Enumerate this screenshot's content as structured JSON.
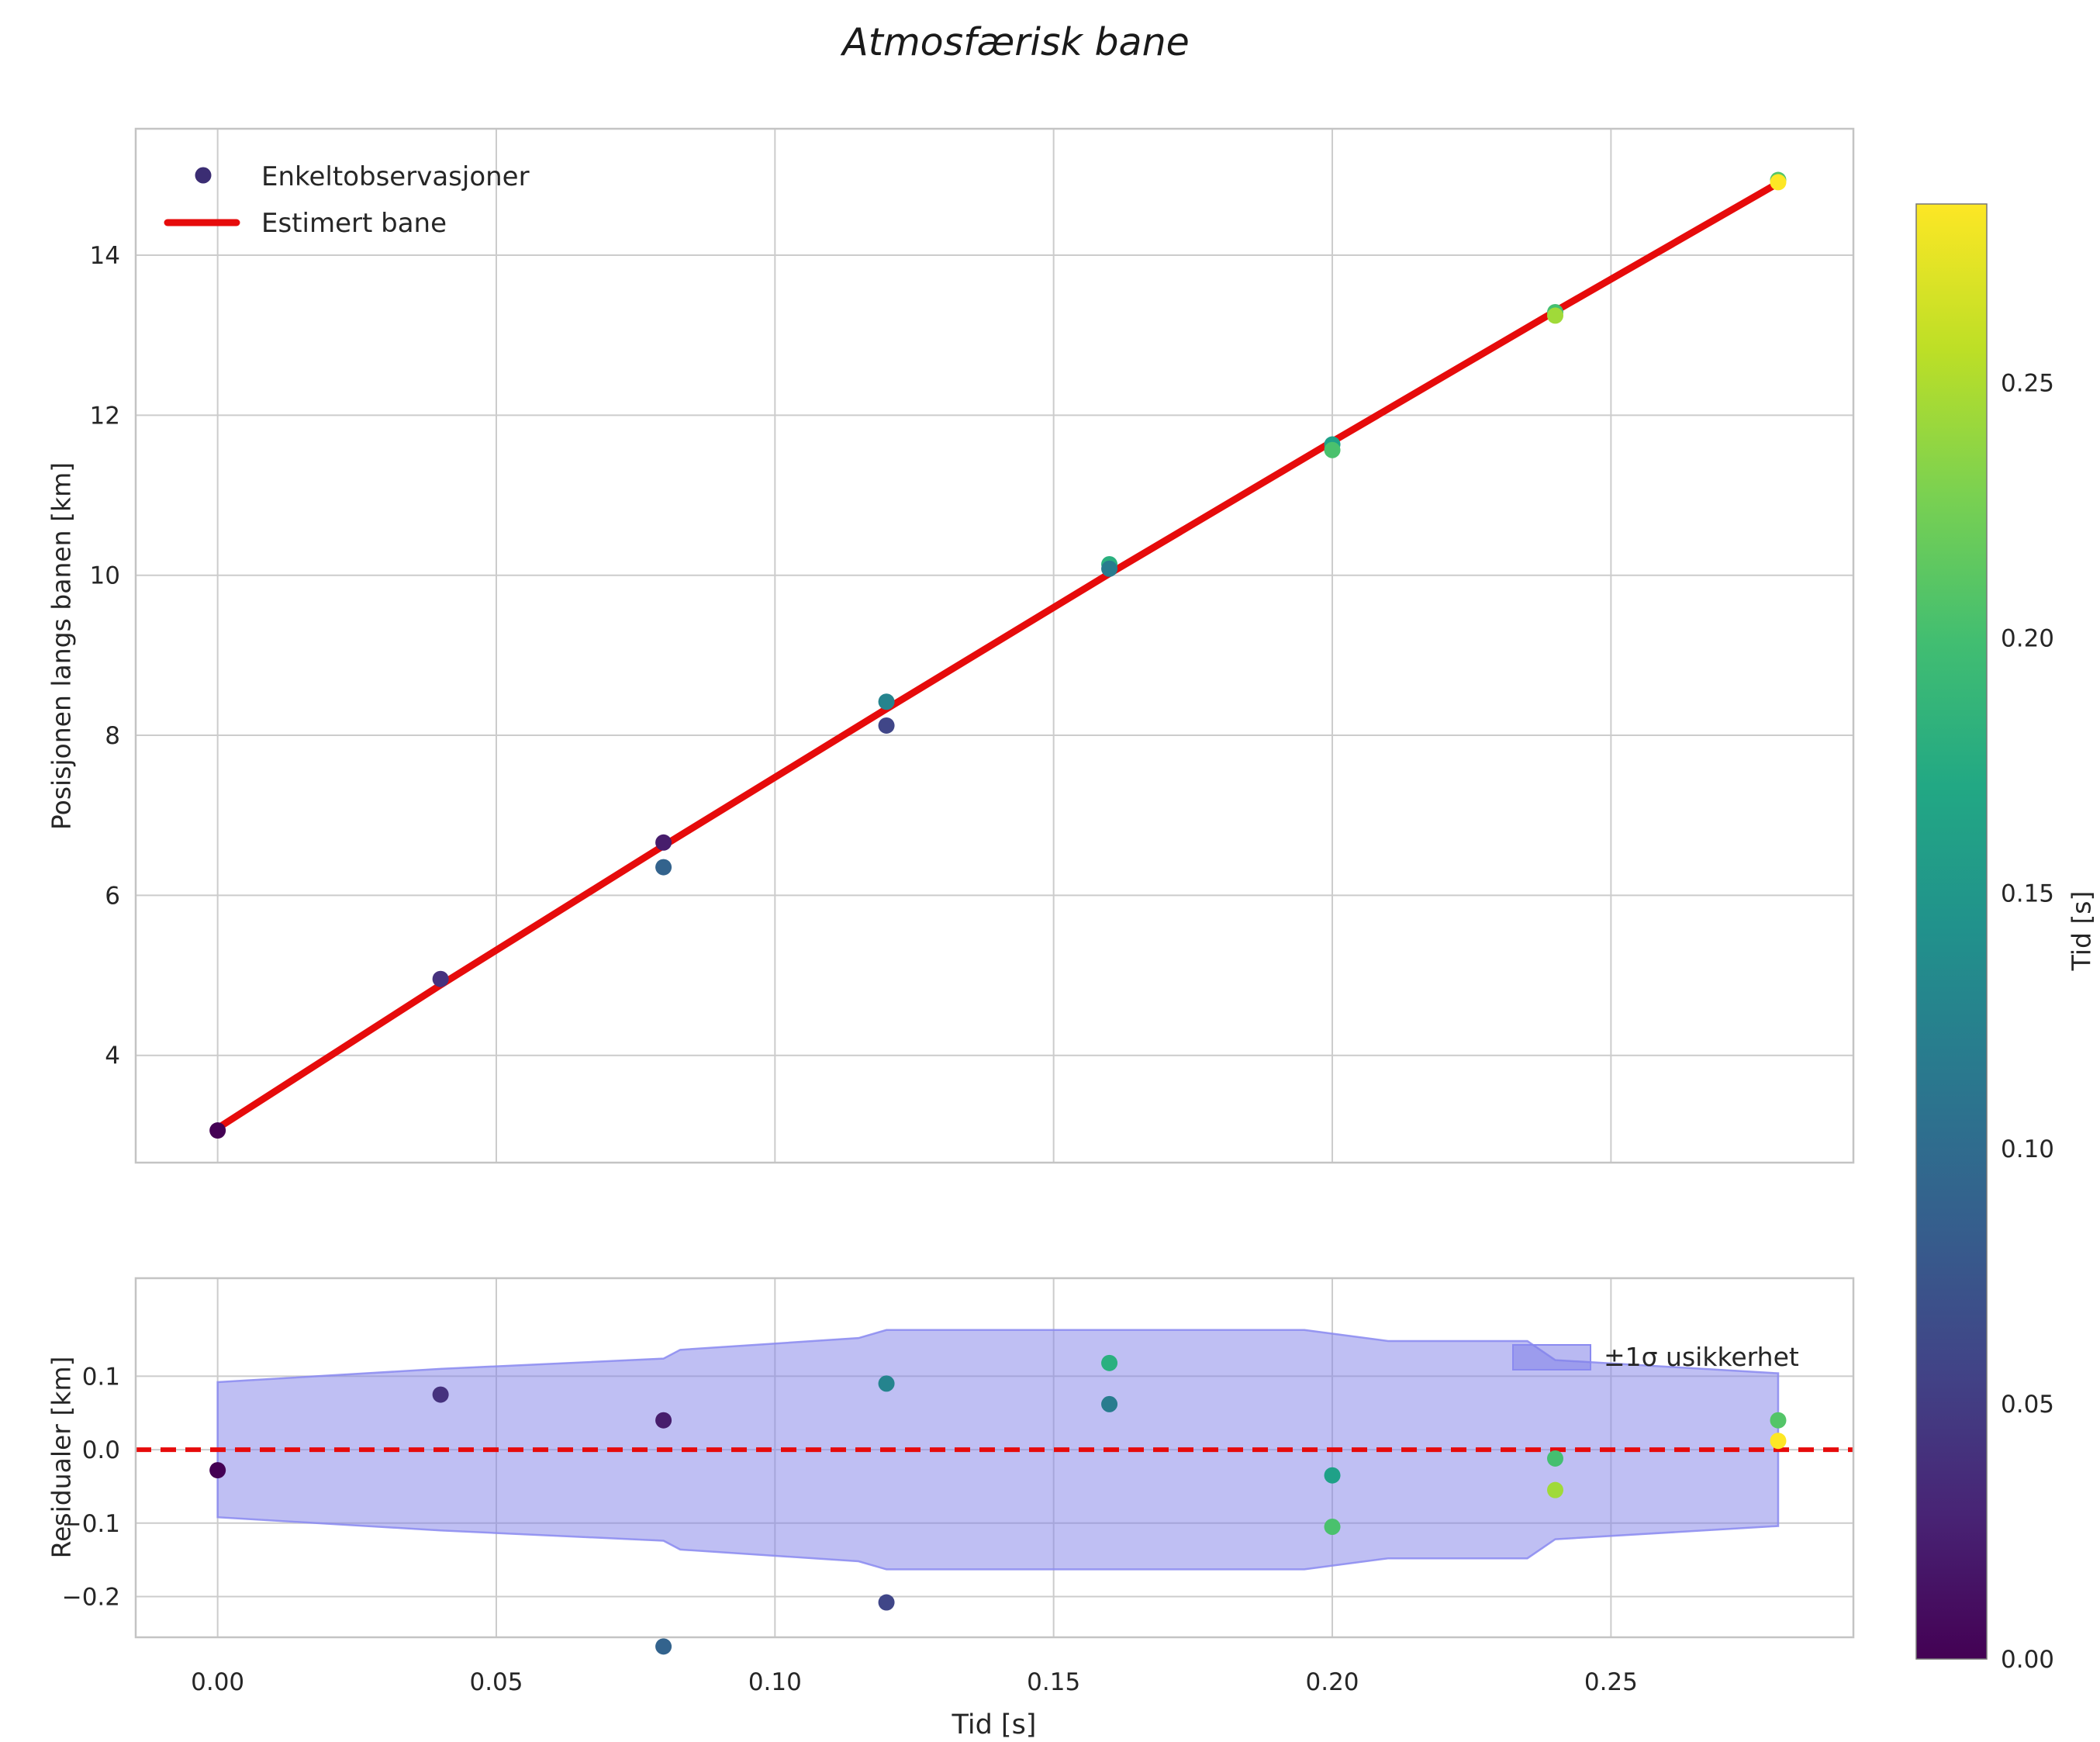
{
  "chart_data": {
    "type": "scatter",
    "suptitle": "Atmosfærisk bane",
    "palette": "viridis",
    "colors": {
      "fit_line": "#e60b0b",
      "zero_line": "#e60b0b",
      "band_fill": "#7f7fe8",
      "band_edge": "#8a8af0",
      "grid": "#cccccc",
      "frame": "#c4c4c4",
      "text": "#262626",
      "legend_marker": "#3b2d73"
    },
    "main": {
      "ylabel": "Posisjonen langs banen [km]",
      "xlim": [
        -0.0147,
        0.2935
      ],
      "ylim": [
        2.66,
        15.58
      ],
      "xticks": [
        0,
        0.05,
        0.1,
        0.15,
        0.2,
        0.25
      ],
      "yticks": [
        4,
        6,
        8,
        10,
        12,
        14
      ],
      "ytick_labels": [
        "4",
        "6",
        "8",
        "10",
        "12",
        "14"
      ],
      "legend": [
        {
          "type": "marker",
          "label": "Enkeltobservasjoner"
        },
        {
          "type": "line",
          "label": "Estimert bane"
        }
      ]
    },
    "fit_line": {
      "label": "Estimert bane",
      "x": [
        0.0,
        0.04,
        0.08,
        0.12,
        0.16,
        0.2,
        0.24,
        0.28
      ],
      "y": [
        3.09,
        4.88,
        6.62,
        8.33,
        10.02,
        11.67,
        13.3,
        14.9
      ]
    },
    "observations": {
      "label": "Enkeltobservasjoner",
      "points": [
        {
          "t": 0.0,
          "res": -0.028,
          "color": "#440154"
        },
        {
          "t": 0.04,
          "res": 0.075,
          "color": "#46327e"
        },
        {
          "t": 0.08,
          "res": 0.04,
          "color": "#471d6c"
        },
        {
          "t": 0.08,
          "res": -0.268,
          "color": "#33638d"
        },
        {
          "t": 0.12,
          "res": 0.09,
          "color": "#25848e"
        },
        {
          "t": 0.12,
          "res": -0.208,
          "color": "#404688"
        },
        {
          "t": 0.16,
          "res": 0.118,
          "color": "#2ab07f"
        },
        {
          "t": 0.16,
          "res": 0.062,
          "color": "#287c8e"
        },
        {
          "t": 0.2,
          "res": -0.035,
          "color": "#1fa188"
        },
        {
          "t": 0.2,
          "res": -0.105,
          "color": "#4ac16d"
        },
        {
          "t": 0.24,
          "res": -0.012,
          "color": "#44bf70"
        },
        {
          "t": 0.24,
          "res": -0.055,
          "color": "#a0da39"
        },
        {
          "t": 0.28,
          "res": 0.04,
          "color": "#54c568"
        },
        {
          "t": 0.28,
          "res": 0.012,
          "color": "#fde725"
        }
      ]
    },
    "residual": {
      "ylabel": "Residualer [km]",
      "xlabel": "Tid [s]",
      "ylim": [
        -0.2555,
        0.2335
      ],
      "xticks": [
        0,
        0.05,
        0.1,
        0.15,
        0.2,
        0.25
      ],
      "xtick_labels": [
        "0.00",
        "0.05",
        "0.10",
        "0.15",
        "0.20",
        "0.25"
      ],
      "yticks": [
        -0.2,
        -0.1,
        0,
        0.1
      ],
      "ytick_labels": [
        "−0.2",
        "−0.1",
        "0.0",
        "0.1"
      ],
      "zero_line": 0,
      "band": {
        "label": "±1σ usikkerhet",
        "t": [
          0.0,
          0.04,
          0.08,
          0.083,
          0.115,
          0.12,
          0.195,
          0.21,
          0.235,
          0.24,
          0.28
        ],
        "sigma": [
          0.092,
          0.11,
          0.124,
          0.136,
          0.152,
          0.163,
          0.163,
          0.148,
          0.148,
          0.122,
          0.104
        ]
      }
    },
    "colorbar": {
      "label": "Tid [s]",
      "range": [
        0,
        0.285
      ],
      "ticks": [
        0,
        0.05,
        0.1,
        0.15,
        0.2,
        0.25
      ],
      "tick_labels": [
        "0.00",
        "0.05",
        "0.10",
        "0.15",
        "0.20",
        "0.25"
      ],
      "stops": [
        [
          "0%",
          "#440154"
        ],
        [
          "10%",
          "#482475"
        ],
        [
          "20%",
          "#414487"
        ],
        [
          "30%",
          "#355f8d"
        ],
        [
          "40%",
          "#2a788e"
        ],
        [
          "50%",
          "#21918c"
        ],
        [
          "60%",
          "#22a884"
        ],
        [
          "70%",
          "#42be71"
        ],
        [
          "80%",
          "#7ad151"
        ],
        [
          "90%",
          "#bddf26"
        ],
        [
          "100%",
          "#fde725"
        ]
      ]
    }
  }
}
